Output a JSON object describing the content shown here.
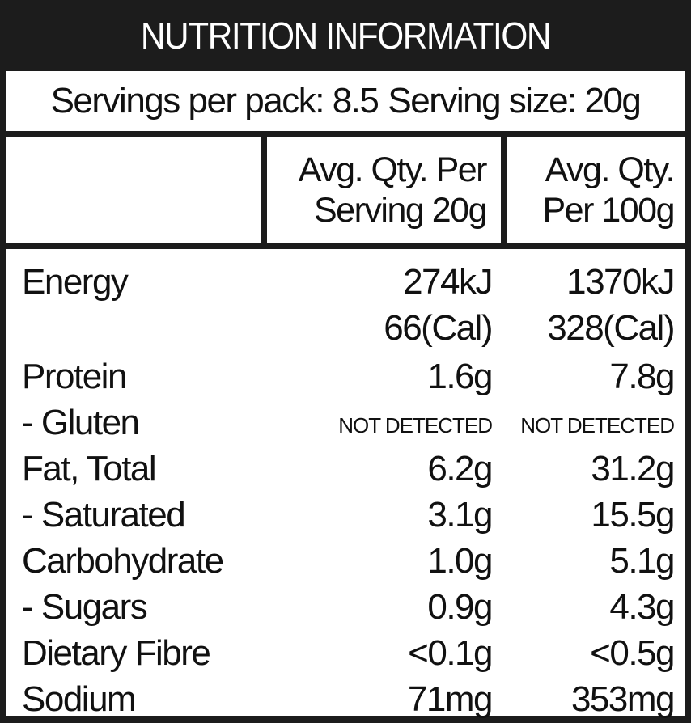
{
  "title": "NUTRITION INFORMATION",
  "servings": {
    "per_pack": "Servings per pack: 8.5",
    "size": "Serving size: 20g"
  },
  "header": {
    "col1_line1": "Avg. Qty. Per",
    "col1_line2": "Serving 20g",
    "col2_line1": "Avg. Qty.",
    "col2_line2": "Per 100g"
  },
  "rows": {
    "energy": {
      "name": "Energy",
      "v1a": "274kJ",
      "v1b": "66(Cal)",
      "v2a": "1370kJ",
      "v2b": "328(Cal)"
    },
    "protein": {
      "name": "Protein",
      "v1": "1.6g",
      "v2": "7.8g"
    },
    "gluten": {
      "name": "- Gluten",
      "v1": "NOT DETECTED",
      "v2": "NOT DETECTED"
    },
    "fat": {
      "name": "Fat, Total",
      "v1": "6.2g",
      "v2": "31.2g"
    },
    "saturated": {
      "name": "- Saturated",
      "v1": "3.1g",
      "v2": "15.5g"
    },
    "carbohydrate": {
      "name": "Carbohydrate",
      "v1": "1.0g",
      "v2": "5.1g"
    },
    "sugars": {
      "name": "- Sugars",
      "v1": "0.9g",
      "v2": "4.3g"
    },
    "fibre": {
      "name": "Dietary Fibre",
      "v1": "<0.1g",
      "v2": "<0.5g"
    },
    "sodium": {
      "name": "Sodium",
      "v1": "71mg",
      "v2": "353mg"
    }
  },
  "colors": {
    "border": "#1c1c1c",
    "background": "#ffffff",
    "text": "#111111"
  }
}
